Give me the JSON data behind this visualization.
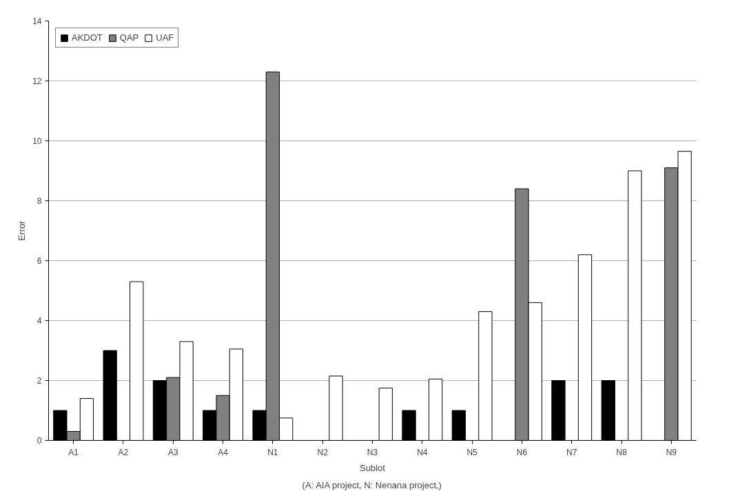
{
  "chart_data": {
    "type": "bar",
    "xlabel": "Sublot",
    "ylabel": "Error",
    "annotations": [
      "(A: AIA project, N: Nenana project,)"
    ],
    "categories": [
      "A1",
      "A2",
      "A3",
      "A4",
      "N1",
      "N2",
      "N3",
      "N4",
      "N5",
      "N6",
      "N7",
      "N8",
      "N9"
    ],
    "series": [
      {
        "name": "AKDOT",
        "color": "#000000",
        "values": [
          1,
          3,
          2,
          1,
          1,
          0,
          0,
          1,
          1,
          0,
          2,
          2,
          0
        ]
      },
      {
        "name": "QAP",
        "color": "#808080",
        "values": [
          0.3,
          0,
          2.1,
          1.5,
          12.3,
          0,
          0,
          0,
          0,
          8.4,
          0,
          0,
          9.1
        ]
      },
      {
        "name": "UAF",
        "color": "#ffffff",
        "values": [
          1.4,
          5.3,
          3.3,
          3.05,
          0.75,
          2.15,
          1.75,
          2.05,
          4.3,
          4.6,
          6.2,
          9.0,
          9.65
        ]
      }
    ],
    "ylim": [
      0,
      14
    ],
    "yticks": [
      0,
      2,
      4,
      6,
      8,
      10,
      12,
      14
    ],
    "grid": "y",
    "legend": "top left"
  }
}
